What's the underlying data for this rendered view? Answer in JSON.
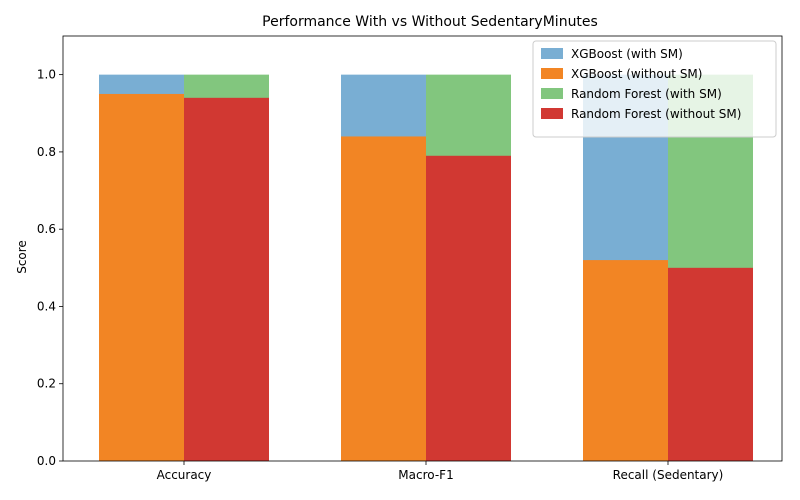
{
  "chart_data": {
    "type": "bar",
    "title": "Performance With vs Without SedentaryMinutes",
    "xlabel": "",
    "ylabel": "Score",
    "ylim": [
      0,
      1.1
    ],
    "yticks": [
      "0.0",
      "0.2",
      "0.4",
      "0.6",
      "0.8",
      "1.0"
    ],
    "categories": [
      "Accuracy",
      "Macro-F1",
      "Recall (Sedentary)"
    ],
    "series": [
      {
        "name": "XGBoost (with SM)",
        "color": "#79aed3",
        "group": "left",
        "values": [
          1.0,
          1.0,
          1.0
        ]
      },
      {
        "name": "XGBoost (without SM)",
        "color": "#f28524",
        "group": "left",
        "values": [
          0.95,
          0.84,
          0.52
        ]
      },
      {
        "name": "Random Forest (with SM)",
        "color": "#82c67e",
        "group": "right",
        "values": [
          1.0,
          1.0,
          1.0
        ]
      },
      {
        "name": "Random Forest (without SM)",
        "color": "#d13832",
        "group": "right",
        "values": [
          0.94,
          0.79,
          0.5
        ]
      }
    ],
    "legend_position": "top-right",
    "grid": false
  }
}
